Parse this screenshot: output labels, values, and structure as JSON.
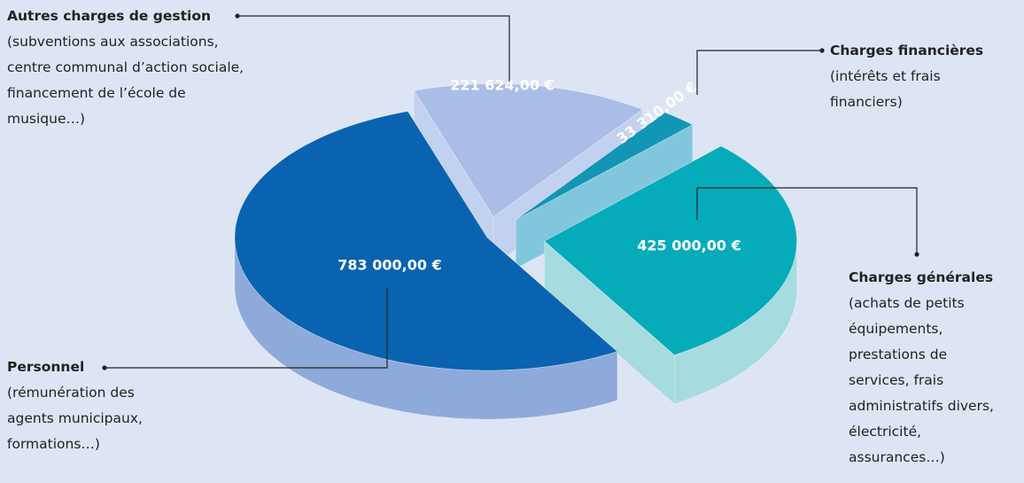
{
  "chart_data": {
    "type": "pie3d",
    "categories": [
      "Personnel",
      "Autres charges de gestion",
      "Charges financières",
      "Charges générales"
    ],
    "descriptions": [
      [
        "(rémunération des",
        "agents municipaux,",
        "formations…)"
      ],
      [
        "(subventions aux associations,",
        "centre communal d’action sociale,",
        "financement de l’école de",
        "musique…)"
      ],
      [
        "(intérêts et frais",
        "financiers)"
      ],
      [
        "(achats de petits",
        "équipements,",
        "prestations de",
        "services, frais",
        "administratifs divers,",
        "électricité,",
        "assurances…)"
      ]
    ],
    "values": [
      783000,
      221624,
      33310,
      425000
    ],
    "value_labels": [
      "783 000,00 €",
      "221 624,00 €",
      "33 310,00 €",
      "425 000,00 €"
    ],
    "colors": [
      "#0a63b0",
      "#a9bde6",
      "#1395b5",
      "#05abb9"
    ],
    "side_colors": [
      "#8eaadb",
      "#c3d1f0",
      "#82c6dd",
      "#a6dbe0"
    ]
  }
}
